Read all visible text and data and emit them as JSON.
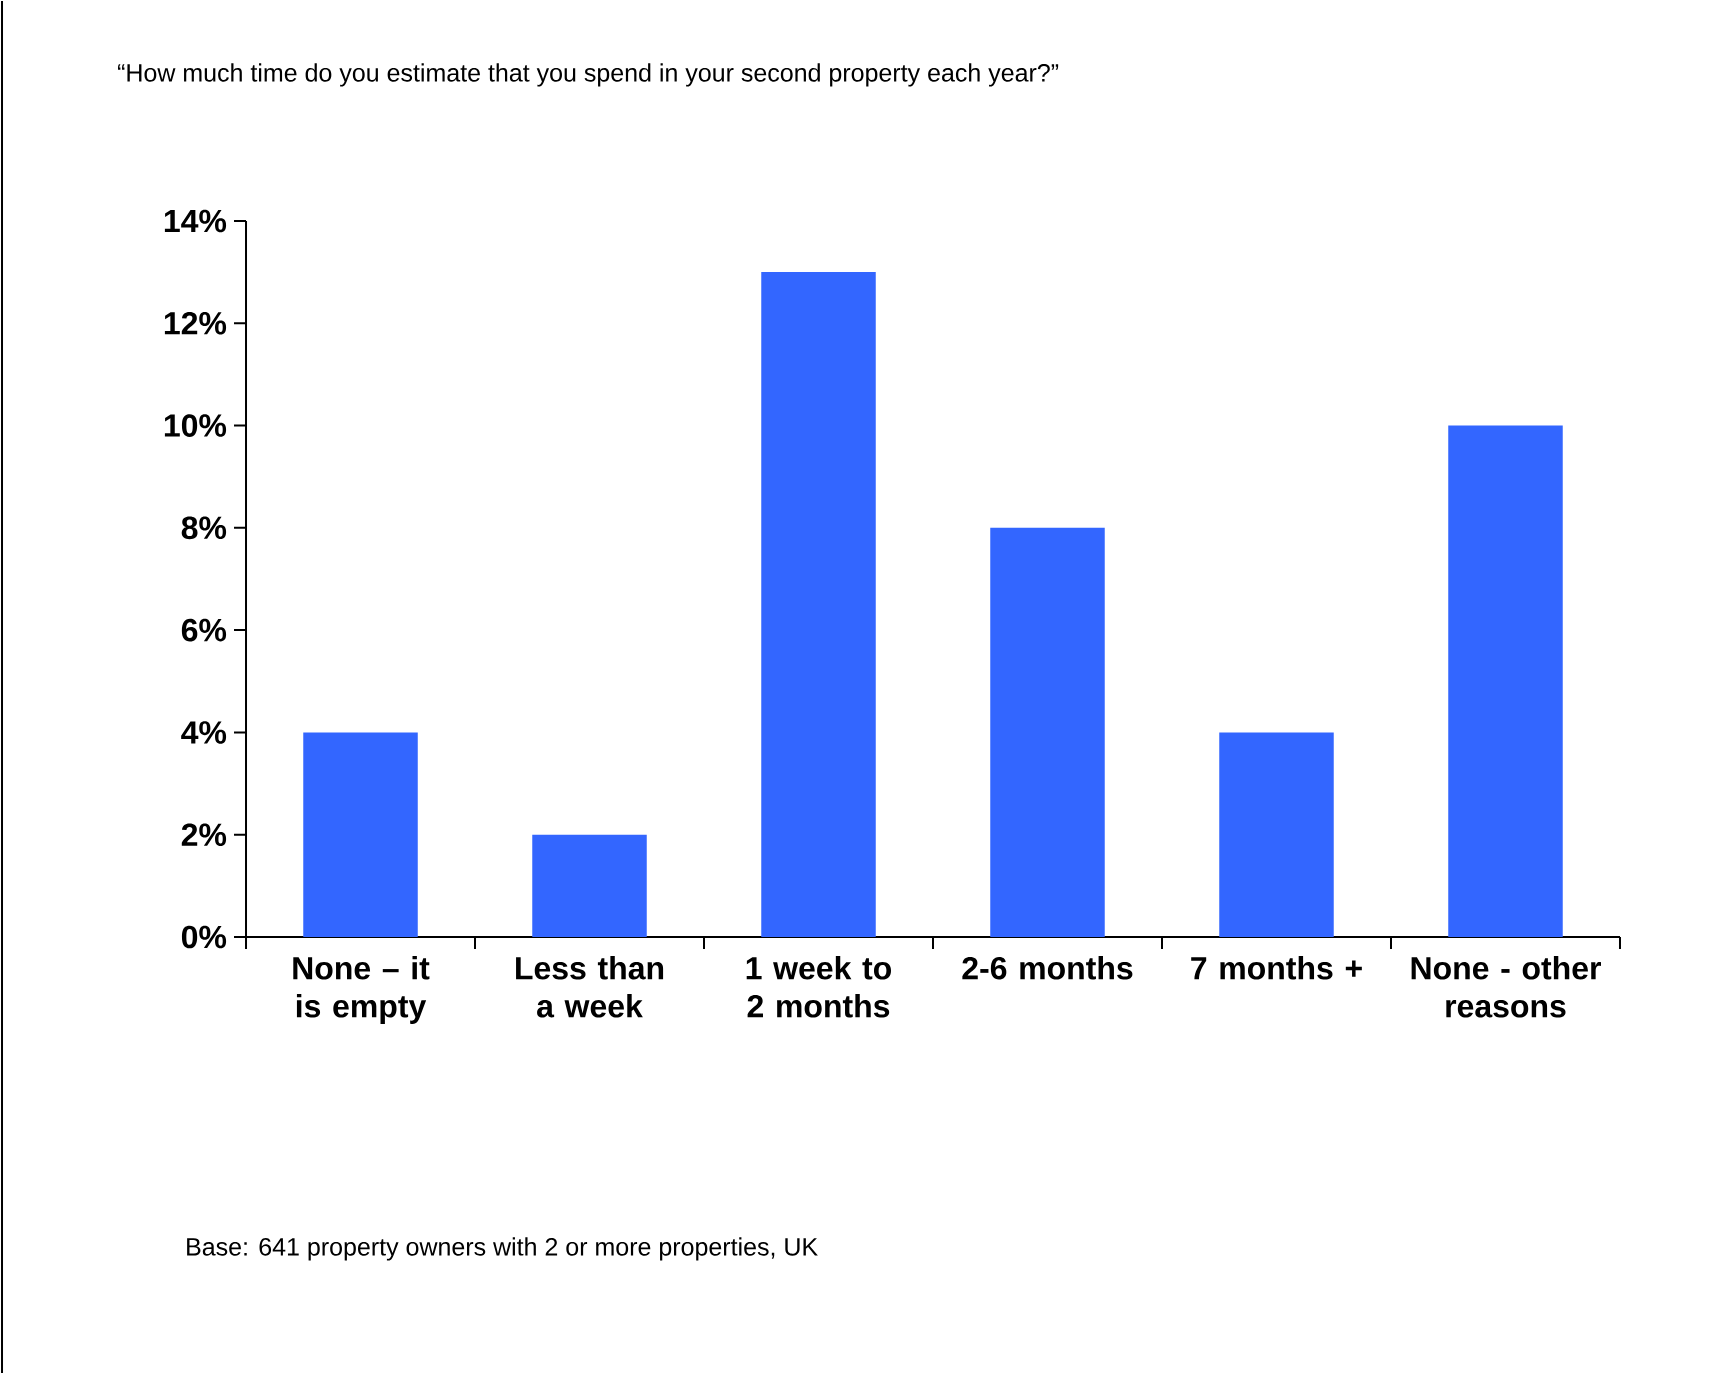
{
  "chart_data": {
    "type": "bar",
    "title": "“How much time do you estimate that you spend in your second property each year?”",
    "categories": [
      "None – it is empty",
      "Less than a week",
      "1 week to 2 months",
      "2-6 months",
      "7 months +",
      "None - other reasons"
    ],
    "values": [
      4,
      2,
      13,
      8,
      4,
      10
    ],
    "color": "#3366ff",
    "ylim": [
      0,
      14
    ],
    "yticks": [
      {
        "value": 0,
        "label": "0%"
      },
      {
        "value": 2,
        "label": "2%"
      },
      {
        "value": 4,
        "label": "4%"
      },
      {
        "value": 6,
        "label": "6%"
      },
      {
        "value": 8,
        "label": "8%"
      },
      {
        "value": 10,
        "label": "10%"
      },
      {
        "value": 12,
        "label": "12%"
      },
      {
        "value": 14,
        "label": "14%"
      }
    ],
    "grid": false,
    "annotations": [
      "Base: 641 property owners with 2 or more properties, UK"
    ]
  }
}
